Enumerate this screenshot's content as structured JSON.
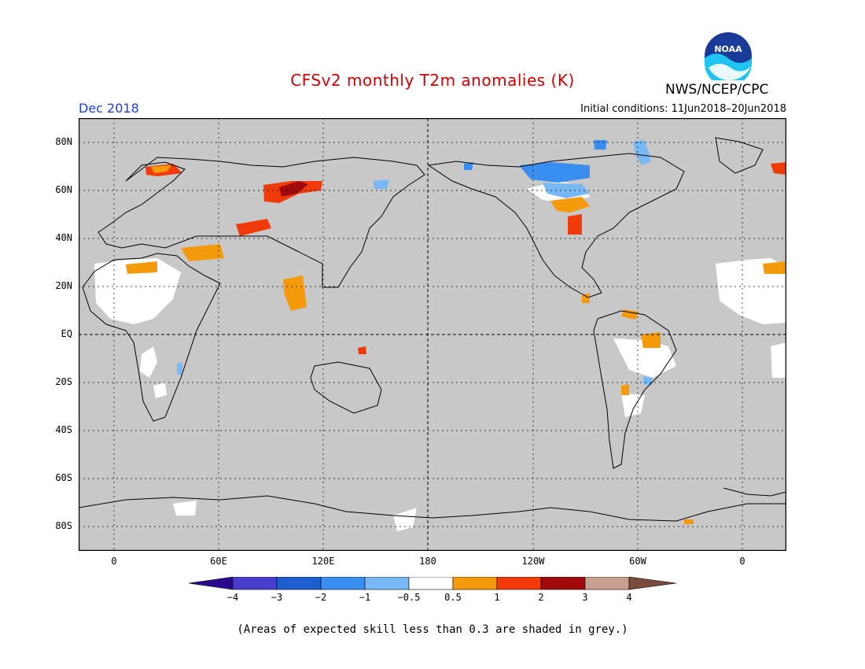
{
  "title": "CFSv2 monthly T2m anomalies (K)",
  "period": "Dec 2018",
  "initial_conditions": "Initial conditions: 11Jun2018–20Jun2018",
  "agency": "NWS/NCEP/CPC",
  "logo_text": "NOAA",
  "colors": {
    "title": "#d40000",
    "period": "#1c3fe0",
    "background_grey": "#c8c8c8",
    "land_white": "#ffffff",
    "coast": "#000000"
  },
  "latitude_labels": [
    "80N",
    "60N",
    "40N",
    "20N",
    "EQ",
    "20S",
    "40S",
    "60S",
    "80S"
  ],
  "longitude_labels": [
    "0",
    "60E",
    "120E",
    "180",
    "120W",
    "60W",
    "0"
  ],
  "colorbar": {
    "ticks": [
      "−4",
      "−3",
      "−2",
      "−1",
      "−0.5",
      "0.5",
      "1",
      "2",
      "3",
      "4"
    ],
    "colors": [
      "#2a0a8c",
      "#4a3ccc",
      "#1e5fd0",
      "#3a8ef0",
      "#78b8f4",
      "#ffffff",
      "#f59a0a",
      "#f03a0a",
      "#a00a0a",
      "#c8a090",
      "#7a4a3a"
    ]
  },
  "footnote": "(Areas of expected skill less than 0.3 are shaded in grey.)"
}
